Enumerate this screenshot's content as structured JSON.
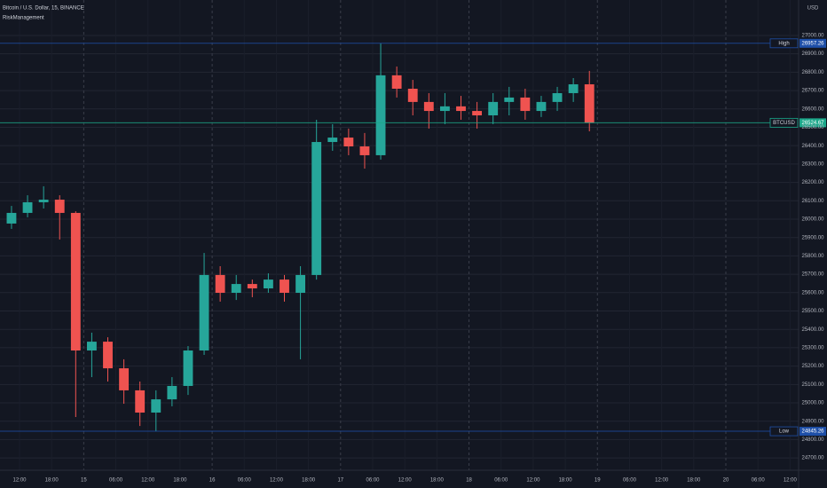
{
  "chart_data": {
    "type": "candlestick",
    "title": "Bitcoin / U.S. Dollar, 15, BINANCE",
    "subtitle": "RiskManagement",
    "currency": "USD",
    "up_color": "#26a69a",
    "down_color": "#ef5350",
    "grid": true,
    "session_breaks": true,
    "x": [
      -1.5,
      1.5,
      4.5,
      7.5,
      10.5,
      13.5,
      16.5,
      19.5,
      22.5,
      25.5,
      28.5,
      31.5,
      34.5,
      37.5,
      40.5,
      43.5,
      46.5,
      49.5,
      52.5,
      55.5,
      58.5,
      61.5,
      64.5,
      67.5,
      70.5,
      73.5,
      76.5,
      79.5,
      82.5,
      85.5,
      88.5,
      91.5,
      94.5,
      97.5,
      100.5,
      103.5,
      106.5
    ],
    "open": [
      25976,
      26034,
      26092,
      26106,
      26034,
      25285,
      25333,
      25188,
      25068,
      24947,
      25019,
      25092,
      25285,
      25696,
      25599,
      25647,
      25623,
      25671,
      25599,
      25696,
      26420,
      26444,
      26396,
      26348,
      26783,
      26710,
      26638,
      26589,
      26614,
      26589,
      26565,
      26638,
      26662,
      26589,
      26638,
      26686,
      26734
    ],
    "high": [
      26072,
      26130,
      26179,
      26130,
      26043,
      25382,
      25357,
      25237,
      25116,
      25068,
      25140,
      25309,
      25816,
      25744,
      25696,
      25671,
      25705,
      25696,
      25744,
      26541,
      26517,
      26493,
      26469,
      26957,
      26831,
      26758,
      26686,
      26686,
      26671,
      26638,
      26686,
      26720,
      26710,
      26671,
      26720,
      26768,
      26807
    ],
    "low": [
      25947,
      26010,
      26058,
      25889,
      24923,
      25140,
      25116,
      24995,
      24874,
      24845,
      24981,
      25043,
      25261,
      25551,
      25560,
      25575,
      25599,
      25551,
      25237,
      25671,
      26372,
      26348,
      26275,
      26324,
      26662,
      26565,
      26493,
      26517,
      26541,
      26493,
      26517,
      26565,
      26541,
      26556,
      26589,
      26638,
      26478
    ],
    "close": [
      26034,
      26092,
      26106,
      26034,
      25285,
      25333,
      25188,
      25068,
      24947,
      25019,
      25092,
      25285,
      25696,
      25599,
      25647,
      25623,
      25671,
      25599,
      25696,
      26420,
      26444,
      26396,
      26348,
      26783,
      26710,
      26638,
      26589,
      26614,
      26589,
      26565,
      26638,
      26662,
      26589,
      26638,
      26686,
      26734,
      26524.67
    ],
    "xlim": [
      -3.65,
      145.6
    ],
    "xticks": [
      {
        "value": 0,
        "label": "12:00"
      },
      {
        "value": 6,
        "label": "18:00"
      },
      {
        "value": 12,
        "label": "15"
      },
      {
        "value": 18,
        "label": "06:00"
      },
      {
        "value": 24,
        "label": "12:00"
      },
      {
        "value": 30,
        "label": "18:00"
      },
      {
        "value": 36,
        "label": "16"
      },
      {
        "value": 42,
        "label": "06:00"
      },
      {
        "value": 48,
        "label": "12:00"
      },
      {
        "value": 54,
        "label": "18:00"
      },
      {
        "value": 60,
        "label": "17"
      },
      {
        "value": 66,
        "label": "06:00"
      },
      {
        "value": 72,
        "label": "12:00"
      },
      {
        "value": 78,
        "label": "18:00"
      },
      {
        "value": 84,
        "label": "18"
      },
      {
        "value": 90,
        "label": "06:00"
      },
      {
        "value": 96,
        "label": "12:00"
      },
      {
        "value": 102,
        "label": "18:00"
      },
      {
        "value": 108,
        "label": "19"
      },
      {
        "value": 114,
        "label": "06:00"
      },
      {
        "value": 120,
        "label": "12:00"
      },
      {
        "value": 126,
        "label": "18:00"
      },
      {
        "value": 132,
        "label": "20"
      },
      {
        "value": 138,
        "label": "06:00"
      },
      {
        "value": 144,
        "label": "12:00"
      }
    ],
    "ylim": [
      24633,
      27193
    ],
    "yticks": [
      {
        "value": 24700,
        "label": "24700.00"
      },
      {
        "value": 24800,
        "label": "24800.00"
      },
      {
        "value": 24900,
        "label": "24900.00"
      },
      {
        "value": 25000,
        "label": "25000.00"
      },
      {
        "value": 25100,
        "label": "25100.00"
      },
      {
        "value": 25200,
        "label": "25200.00"
      },
      {
        "value": 25300,
        "label": "25300.00"
      },
      {
        "value": 25400,
        "label": "25400.00"
      },
      {
        "value": 25500,
        "label": "25500.00"
      },
      {
        "value": 25600,
        "label": "25600.00"
      },
      {
        "value": 25700,
        "label": "25700.00"
      },
      {
        "value": 25800,
        "label": "25800.00"
      },
      {
        "value": 25900,
        "label": "25900.00"
      },
      {
        "value": 26000,
        "label": "26000.00"
      },
      {
        "value": 26100,
        "label": "26100.00"
      },
      {
        "value": 26200,
        "label": "26200.00"
      },
      {
        "value": 26300,
        "label": "26300.00"
      },
      {
        "value": 26400,
        "label": "26400.00"
      },
      {
        "value": 26500,
        "label": "26500.00"
      },
      {
        "value": 26600,
        "label": "26600.00"
      },
      {
        "value": 26700,
        "label": "26700.00"
      },
      {
        "value": 26800,
        "label": "26800.00"
      },
      {
        "value": 26900,
        "label": "26900.00"
      },
      {
        "value": 27000,
        "label": "27000.00"
      }
    ],
    "markers": [
      {
        "label": "High",
        "value": 26957.26,
        "color": "#1e4fa8"
      },
      {
        "label": "BTCUSD",
        "value": 26524.67,
        "color": "#1ba88a"
      },
      {
        "label": "Low",
        "value": 24845.26,
        "color": "#1e4fa8"
      }
    ]
  }
}
